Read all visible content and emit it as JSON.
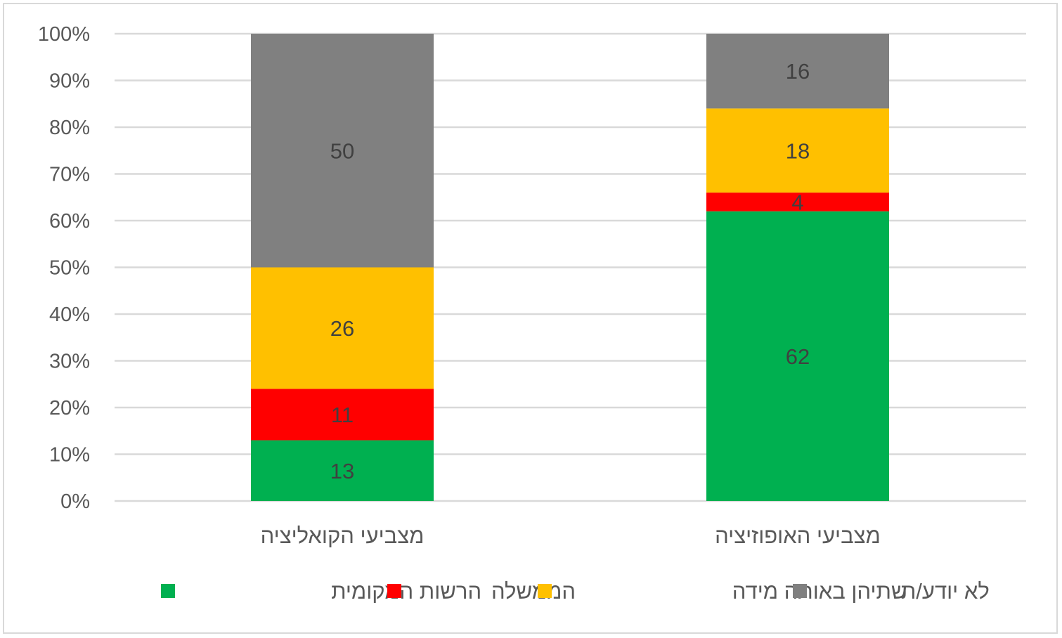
{
  "chart_data": {
    "type": "bar",
    "stacked": "percent",
    "title": "",
    "xlabel": "",
    "ylabel": "",
    "ylim": [
      0,
      100
    ],
    "yticks": [
      "0%",
      "10%",
      "20%",
      "30%",
      "40%",
      "50%",
      "60%",
      "70%",
      "80%",
      "90%",
      "100%"
    ],
    "grid": true,
    "legend_position": "bottom",
    "categories": [
      "מצביעי הקואליציה",
      "מצביעי האופוזיציה"
    ],
    "series": [
      {
        "name": "הרשות המקומית",
        "color": "#00B050",
        "values": [
          13,
          62
        ]
      },
      {
        "name": "הממשלה",
        "color": "#FF0000",
        "values": [
          11,
          4
        ]
      },
      {
        "name": "שתיהן באותה מידה",
        "color": "#FFC000",
        "values": [
          26,
          18
        ]
      },
      {
        "name": "לא יודע/ת",
        "color": "#808080",
        "values": [
          50,
          16
        ]
      }
    ]
  }
}
